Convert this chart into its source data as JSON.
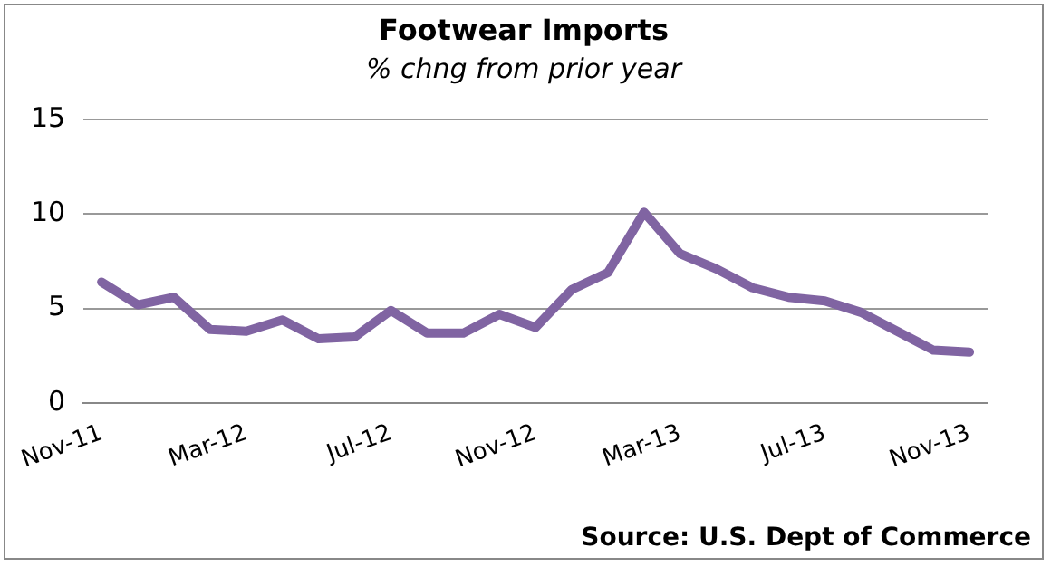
{
  "chart_data": {
    "type": "line",
    "title": "Footwear Imports",
    "subtitle": "% chng from prior year",
    "categories": [
      "Nov-11",
      null,
      null,
      null,
      "Mar-12",
      null,
      null,
      null,
      "Jul-12",
      null,
      null,
      null,
      "Nov-12",
      null,
      null,
      null,
      "Mar-13",
      null,
      null,
      null,
      "Jul-13",
      null,
      null,
      null,
      "Nov-13"
    ],
    "series": [
      {
        "color": "#8064a2",
        "values": [
          6.4,
          5.2,
          5.6,
          3.9,
          3.8,
          4.4,
          3.4,
          3.5,
          4.9,
          3.7,
          3.7,
          4.7,
          4.0,
          6.0,
          6.9,
          10.1,
          7.9,
          7.1,
          6.1,
          5.6,
          5.4,
          4.8,
          3.8,
          2.8,
          2.7
        ]
      }
    ],
    "ylim": [
      0,
      15
    ],
    "yticks": [
      0,
      5,
      10,
      15
    ],
    "grid": "y",
    "legend": false,
    "marker": "none",
    "line_style": "solid",
    "annotations": [
      "Source: U.S. Dept of Commerce"
    ]
  }
}
